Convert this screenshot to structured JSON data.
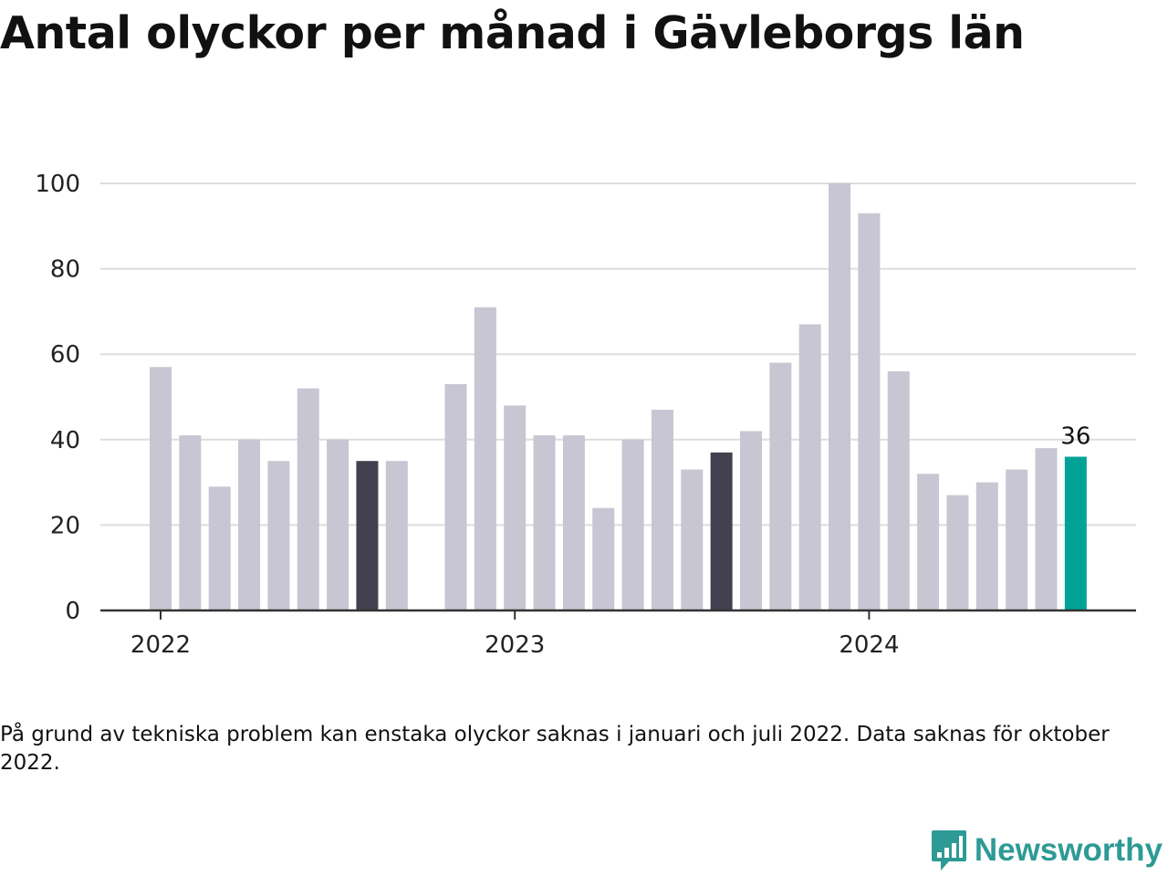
{
  "title": "Antal olyckor per månad i Gävleborgs län",
  "note": "På grund av tekniska problem kan enstaka olyckor saknas i januari och juli 2022. Data saknas för oktober 2022.",
  "brand": {
    "name": "Newsworthy",
    "color": "#2e9a95",
    "icon": "newsworthy-chat-chart-icon"
  },
  "colors": {
    "default_bar": "#c8c6d2",
    "highlight_bar": "#43414f",
    "latest_bar": "#00a396",
    "grid": "#dddddd",
    "axis": "#333333"
  },
  "chart_data": {
    "type": "bar",
    "title": "Antal olyckor per månad i Gävleborgs län",
    "xlabel": "",
    "ylabel": "",
    "ylim": [
      0,
      100
    ],
    "yticks": [
      "0",
      "20",
      "40",
      "60",
      "80",
      "100"
    ],
    "xticks": [
      {
        "label": "2022",
        "at": "2022-01"
      },
      {
        "label": "2023",
        "at": "2023-01"
      },
      {
        "label": "2024",
        "at": "2024-01"
      }
    ],
    "grid": true,
    "legend": "none",
    "categories": [
      "2022-01",
      "2022-02",
      "2022-03",
      "2022-04",
      "2022-05",
      "2022-06",
      "2022-07",
      "2022-08",
      "2022-09",
      "2022-10",
      "2022-11",
      "2022-12",
      "2023-01",
      "2023-02",
      "2023-03",
      "2023-04",
      "2023-05",
      "2023-06",
      "2023-07",
      "2023-08",
      "2023-09",
      "2023-10",
      "2023-11",
      "2023-12",
      "2024-01",
      "2024-02",
      "2024-03",
      "2024-04",
      "2024-05",
      "2024-06",
      "2024-07",
      "2024-08"
    ],
    "values": [
      57,
      41,
      29,
      40,
      35,
      52,
      40,
      35,
      35,
      null,
      53,
      71,
      48,
      41,
      41,
      24,
      40,
      47,
      33,
      37,
      42,
      58,
      67,
      100,
      93,
      56,
      32,
      27,
      30,
      33,
      38,
      36
    ],
    "highlighted": [
      "2022-08",
      "2023-08"
    ],
    "latest": "2024-08",
    "data_labels": [
      {
        "category": "2024-08",
        "text": "36"
      }
    ]
  }
}
